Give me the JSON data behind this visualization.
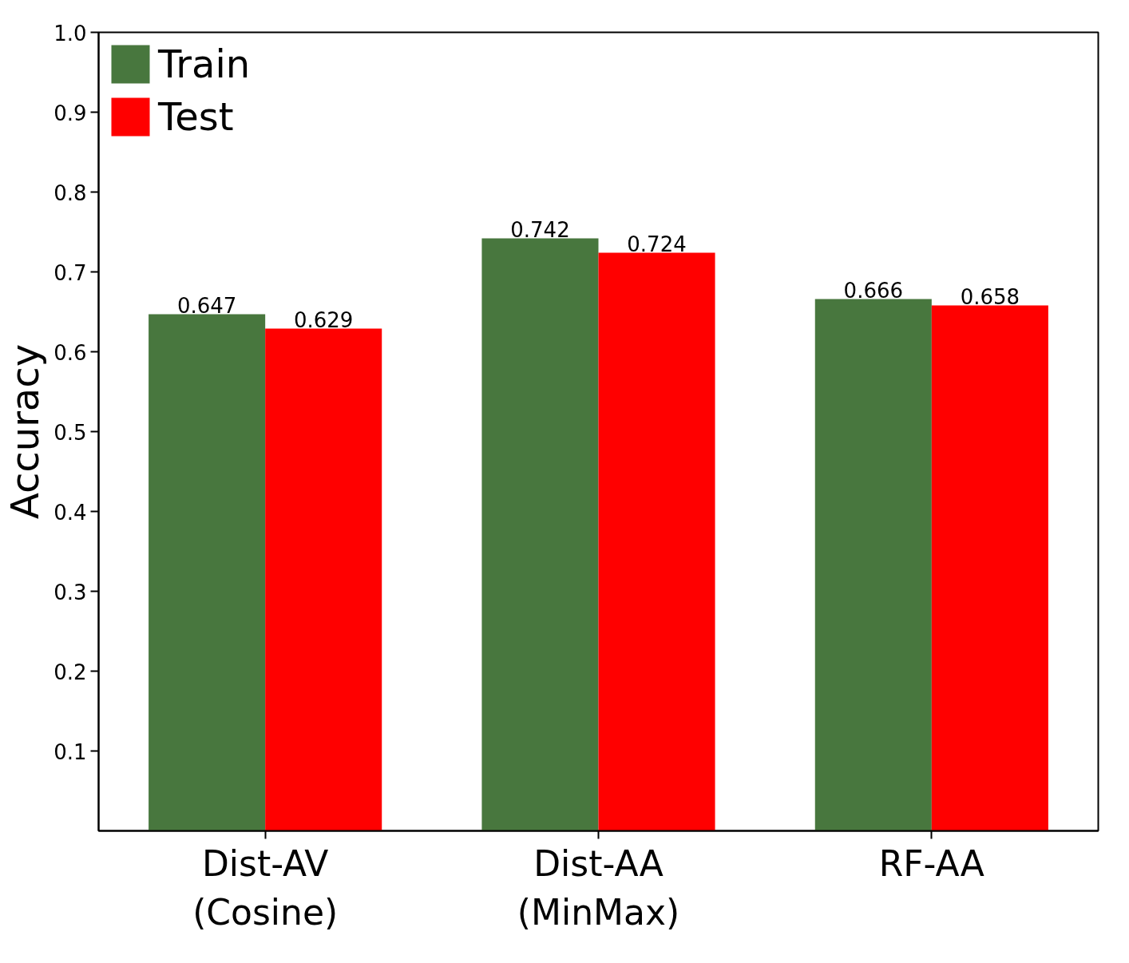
{
  "chart_data": {
    "type": "bar",
    "ylabel": "Accuracy",
    "categories": [
      "Dist-AV\n(Cosine)",
      "Dist-AA\n(MinMax)",
      "RF-AA"
    ],
    "series": [
      {
        "name": "Train",
        "color": "#48773e",
        "values": [
          0.647,
          0.742,
          0.666
        ]
      },
      {
        "name": "Test",
        "color": "#ff0000",
        "values": [
          0.629,
          0.724,
          0.658
        ]
      }
    ],
    "ylim": [
      0,
      1.0
    ],
    "yticks": [
      0.1,
      0.2,
      0.3,
      0.4,
      0.5,
      0.6,
      0.7,
      0.8,
      0.9,
      {
        "value": 1.0,
        "label": "1.0"
      }
    ],
    "data_labels": true,
    "legend": "top left",
    "grid": false
  }
}
